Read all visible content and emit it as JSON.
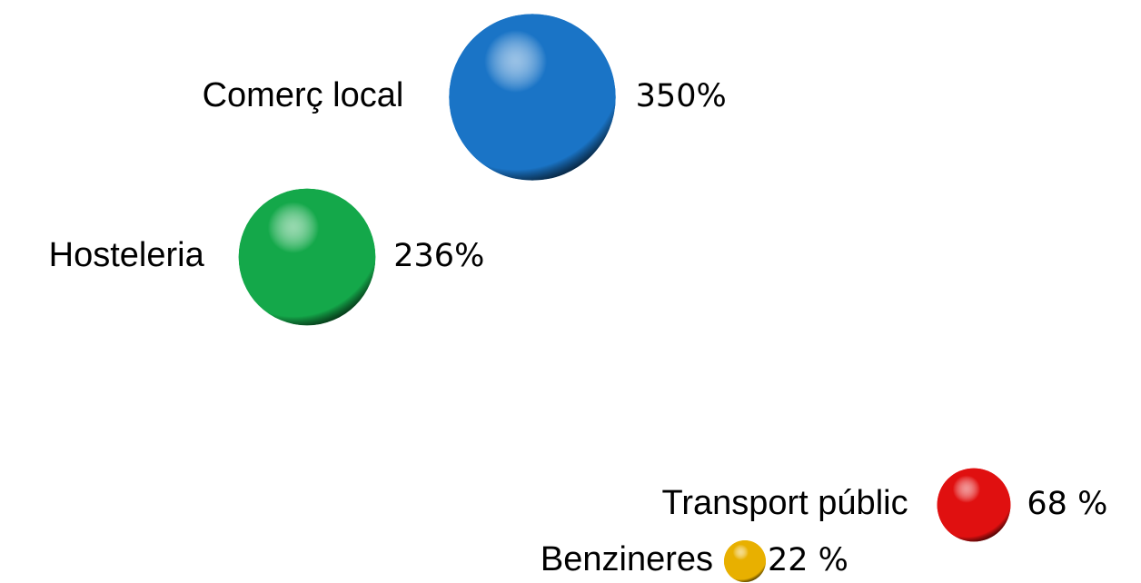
{
  "chart_data": {
    "type": "bubble",
    "categories": [
      "Comerç local",
      "Hosteleria",
      "Transport públic",
      "Benzineres"
    ],
    "values": [
      350,
      236,
      68,
      22
    ],
    "value_labels": [
      "350%",
      "236%",
      "68 %",
      "22 %"
    ],
    "colors": [
      "#1a74c6",
      "#14a84a",
      "#e01010",
      "#e8b000"
    ]
  }
}
